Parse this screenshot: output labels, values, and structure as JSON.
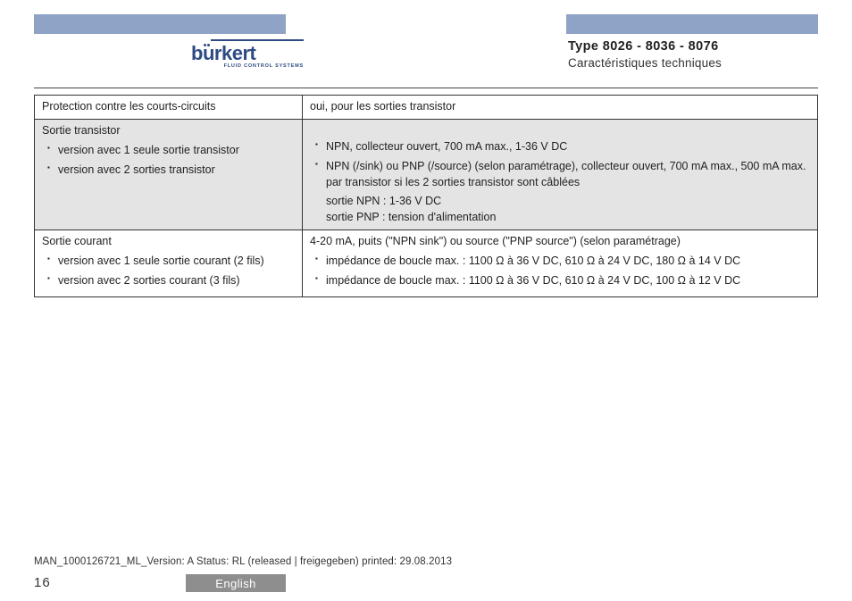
{
  "header": {
    "logo_brand": "burkert",
    "logo_tagline": "FLUID CONTROL SYSTEMS",
    "type_line": "Type 8026 - 8036 - 8076",
    "subtitle": "Caractéristiques techniques",
    "bar_color": "#8ea3c5",
    "logo_color": "#2e4a83"
  },
  "table": {
    "rows": [
      {
        "shaded": false,
        "left": {
          "plain": "Protection contre les courts-circuits"
        },
        "right": {
          "plain": "oui, pour les sorties transistor"
        }
      },
      {
        "shaded": true,
        "left": {
          "subhead": "Sortie transistor",
          "bullets": [
            "version avec 1 seule sortie transistor",
            "version avec 2 sorties transistor"
          ]
        },
        "right": {
          "subhead": "",
          "bullets": [
            "NPN, collecteur ouvert, 700 mA max., 1-36 V DC",
            "NPN (/sink) ou PNP (/source) (selon paramétrage), collecteur ouvert, 700 mA max., 500 mA max. par transistor si les 2 sorties transistor sont câblées"
          ],
          "trailing_lines": [
            "sortie NPN : 1-36 V DC",
            "sortie PNP : tension d'alimentation"
          ]
        }
      },
      {
        "shaded": false,
        "left": {
          "subhead": "Sortie courant",
          "bullets": [
            "version avec 1 seule sortie courant (2 fils)",
            "version avec 2 sorties courant (3 fils)"
          ]
        },
        "right": {
          "subhead": "4-20 mA, puits (\"NPN sink\") ou source (\"PNP source\") (selon paramétrage)",
          "bullets": [
            "impédance de boucle max. : 1100 Ω à 36 V DC, 610 Ω à 24 V DC, 180 Ω à 14 V DC",
            "impédance de boucle max. : 1100 Ω à 36 V DC, 610 Ω à 24 V DC, 100 Ω à 12 V DC"
          ]
        }
      }
    ]
  },
  "footer": {
    "status_line": "MAN_1000126721_ML_Version: A Status: RL (released | freigegeben)  printed: 29.08.2013",
    "page_number": "16",
    "language": "English",
    "langbar_color": "#8e8e8e"
  }
}
